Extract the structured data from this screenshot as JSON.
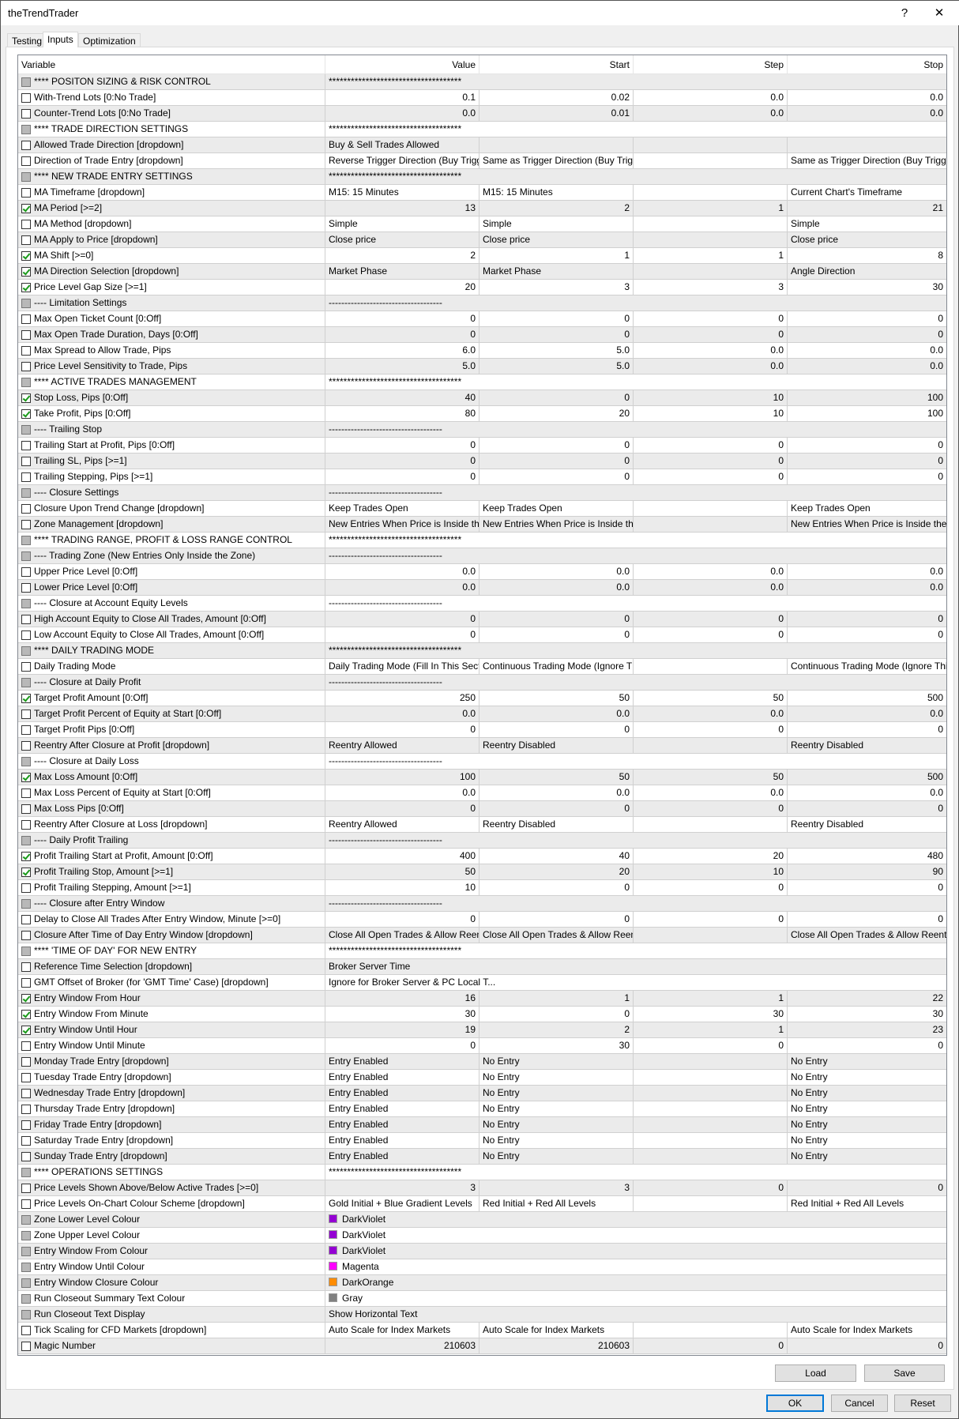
{
  "window": {
    "title": "theTrendTrader",
    "help_label": "?",
    "close_label": "✕"
  },
  "tabs": [
    {
      "label": "Testing"
    },
    {
      "label": "Inputs",
      "active": true
    },
    {
      "label": "Optimization"
    }
  ],
  "columns": [
    "Variable",
    "Value",
    "Start",
    "Step",
    "Stop"
  ],
  "rows": [
    {
      "kind": "section",
      "check": "disabled",
      "name": "**** POSITON SIZING & RISK CONTROL",
      "value": "************************************"
    },
    {
      "check": "unchecked",
      "name": "With-Trend Lots [0:No Trade]",
      "value": "0.1",
      "start": "0.02",
      "step": "0.0",
      "stop": "0.0"
    },
    {
      "check": "unchecked",
      "name": "Counter-Trend Lots [0:No Trade]",
      "value": "0.0",
      "start": "0.01",
      "step": "0.0",
      "stop": "0.0"
    },
    {
      "kind": "section",
      "check": "disabled",
      "name": "**** TRADE DIRECTION SETTINGS",
      "value": "************************************"
    },
    {
      "check": "unchecked",
      "name": "Allowed Trade Direction [dropdown]",
      "value": "Buy & Sell Trades Allowed",
      "start": "",
      "step": "",
      "stop": ""
    },
    {
      "check": "unchecked",
      "name": "Direction of Trade Entry [dropdown]",
      "value": "Reverse Trigger Direction (Buy Trigge...",
      "start": "Same as Trigger Direction (Buy Trigg...",
      "step": "",
      "stop": "Same as Trigger Direction (Buy Trigger..."
    },
    {
      "kind": "section",
      "check": "disabled",
      "name": "**** NEW TRADE ENTRY SETTINGS",
      "value": "************************************"
    },
    {
      "check": "unchecked",
      "name": "MA Timeframe [dropdown]",
      "value": "M15: 15 Minutes",
      "start": "M15: 15 Minutes",
      "step": "",
      "stop": "Current Chart's Timeframe"
    },
    {
      "check": "checked",
      "name": "MA Period [>=2]",
      "value": "13",
      "start": "2",
      "step": "1",
      "stop": "21"
    },
    {
      "check": "unchecked",
      "name": "MA Method [dropdown]",
      "value": "Simple",
      "start": "Simple",
      "step": "",
      "stop": "Simple"
    },
    {
      "check": "unchecked",
      "name": "MA Apply to Price [dropdown]",
      "value": "Close price",
      "start": "Close price",
      "step": "",
      "stop": "Close price"
    },
    {
      "check": "checked",
      "name": "MA Shift [>=0]",
      "value": "2",
      "start": "1",
      "step": "1",
      "stop": "8"
    },
    {
      "check": "checked",
      "name": "MA Direction Selection [dropdown]",
      "value": "Market Phase",
      "start": "Market Phase",
      "step": "",
      "stop": "Angle Direction"
    },
    {
      "check": "checked",
      "name": "Price Level Gap Size [>=1]",
      "value": "20",
      "start": "3",
      "step": "3",
      "stop": "30"
    },
    {
      "kind": "section",
      "check": "disabled",
      "name": "---- Limitation Settings",
      "value": "------------------------------------"
    },
    {
      "check": "unchecked",
      "name": "Max Open Ticket Count [0:Off]",
      "value": "0",
      "start": "0",
      "step": "0",
      "stop": "0"
    },
    {
      "check": "unchecked",
      "name": "Max Open Trade Duration, Days [0:Off]",
      "value": "0",
      "start": "0",
      "step": "0",
      "stop": "0"
    },
    {
      "check": "unchecked",
      "name": "Max Spread to Allow Trade, Pips",
      "value": "6.0",
      "start": "5.0",
      "step": "0.0",
      "stop": "0.0"
    },
    {
      "check": "unchecked",
      "name": "Price Level Sensitivity to Trade, Pips",
      "value": "5.0",
      "start": "5.0",
      "step": "0.0",
      "stop": "0.0"
    },
    {
      "kind": "section",
      "check": "disabled",
      "name": "**** ACTIVE TRADES MANAGEMENT",
      "value": "************************************"
    },
    {
      "check": "checked",
      "name": "Stop Loss, Pips [0:Off]",
      "value": "40",
      "start": "0",
      "step": "10",
      "stop": "100"
    },
    {
      "check": "checked",
      "name": "Take Profit, Pips [0:Off]",
      "value": "80",
      "start": "20",
      "step": "10",
      "stop": "100"
    },
    {
      "kind": "section",
      "check": "disabled",
      "name": "---- Trailing Stop",
      "value": "------------------------------------"
    },
    {
      "check": "unchecked",
      "name": "Trailing Start at Profit, Pips [0:Off]",
      "value": "0",
      "start": "0",
      "step": "0",
      "stop": "0"
    },
    {
      "check": "unchecked",
      "name": "Trailing SL, Pips [>=1]",
      "value": "0",
      "start": "0",
      "step": "0",
      "stop": "0"
    },
    {
      "check": "unchecked",
      "name": "Trailing Stepping, Pips [>=1]",
      "value": "0",
      "start": "0",
      "step": "0",
      "stop": "0"
    },
    {
      "kind": "section",
      "check": "disabled",
      "name": "---- Closure Settings",
      "value": "------------------------------------"
    },
    {
      "check": "unchecked",
      "name": "Closure Upon Trend Change [dropdown]",
      "value": "Keep Trades Open",
      "start": "Keep Trades Open",
      "step": "",
      "stop": "Keep Trades Open"
    },
    {
      "check": "unchecked",
      "name": "Zone Management [dropdown]",
      "value": "New Entries When Price is Inside the ...",
      "start": "New Entries When Price is Inside the ...",
      "step": "",
      "stop": "New Entries When Price is Inside the ..."
    },
    {
      "kind": "section",
      "check": "disabled",
      "name": "**** TRADING RANGE, PROFIT & LOSS RANGE CONTROL",
      "value": "************************************"
    },
    {
      "kind": "section",
      "check": "disabled",
      "name": "---- Trading Zone (New Entries Only Inside the Zone)",
      "value": "------------------------------------"
    },
    {
      "check": "unchecked",
      "name": "Upper Price Level [0:Off]",
      "value": "0.0",
      "start": "0.0",
      "step": "0.0",
      "stop": "0.0"
    },
    {
      "check": "unchecked",
      "name": "Lower Price Level [0:Off]",
      "value": "0.0",
      "start": "0.0",
      "step": "0.0",
      "stop": "0.0"
    },
    {
      "kind": "section",
      "check": "disabled",
      "name": "---- Closure at Account Equity Levels",
      "value": "------------------------------------"
    },
    {
      "check": "unchecked",
      "name": "High Account Equity to Close All Trades, Amount [0:Off]",
      "value": "0",
      "start": "0",
      "step": "0",
      "stop": "0"
    },
    {
      "check": "unchecked",
      "name": "Low Account Equity to Close All Trades, Amount [0:Off]",
      "value": "0",
      "start": "0",
      "step": "0",
      "stop": "0"
    },
    {
      "kind": "section",
      "check": "disabled",
      "name": "**** DAILY TRADING MODE",
      "value": "************************************"
    },
    {
      "check": "unchecked",
      "name": "Daily Trading Mode",
      "value": "Daily Trading Mode (Fill In This Sectio...",
      "start": "Continuous Trading Mode (Ignore Thi...",
      "step": "",
      "stop": "Continuous Trading Mode (Ignore This..."
    },
    {
      "kind": "section",
      "check": "disabled",
      "name": "---- Closure at Daily Profit",
      "value": "------------------------------------"
    },
    {
      "check": "checked",
      "name": "Target Profit Amount [0:Off]",
      "value": "250",
      "start": "50",
      "step": "50",
      "stop": "500"
    },
    {
      "check": "unchecked",
      "name": "Target Profit Percent of Equity at Start [0:Off]",
      "value": "0.0",
      "start": "0.0",
      "step": "0.0",
      "stop": "0.0"
    },
    {
      "check": "unchecked",
      "name": "Target Profit Pips [0:Off]",
      "value": "0",
      "start": "0",
      "step": "0",
      "stop": "0"
    },
    {
      "check": "unchecked",
      "name": "Reentry After Closure at Profit [dropdown]",
      "value": "Reentry Allowed",
      "start": "Reentry Disabled",
      "step": "",
      "stop": "Reentry Disabled"
    },
    {
      "kind": "section",
      "check": "disabled",
      "name": "---- Closure at Daily Loss",
      "value": "------------------------------------"
    },
    {
      "check": "checked",
      "name": "Max Loss Amount [0:Off]",
      "value": "100",
      "start": "50",
      "step": "50",
      "stop": "500"
    },
    {
      "check": "unchecked",
      "name": "Max Loss Percent of Equity at Start [0:Off]",
      "value": "0.0",
      "start": "0.0",
      "step": "0.0",
      "stop": "0.0"
    },
    {
      "check": "unchecked",
      "name": "Max Loss Pips [0:Off]",
      "value": "0",
      "start": "0",
      "step": "0",
      "stop": "0"
    },
    {
      "check": "unchecked",
      "name": "Reentry After Closure at Loss [dropdown]",
      "value": "Reentry Allowed",
      "start": "Reentry Disabled",
      "step": "",
      "stop": "Reentry Disabled"
    },
    {
      "kind": "section",
      "check": "disabled",
      "name": "---- Daily Profit Trailing",
      "value": "------------------------------------"
    },
    {
      "check": "checked",
      "name": "Profit Trailing Start at Profit, Amount [0:Off]",
      "value": "400",
      "start": "40",
      "step": "20",
      "stop": "480"
    },
    {
      "check": "checked",
      "name": "Profit Trailing Stop, Amount [>=1]",
      "value": "50",
      "start": "20",
      "step": "10",
      "stop": "90"
    },
    {
      "check": "unchecked",
      "name": "Profit Trailing Stepping, Amount [>=1]",
      "value": "10",
      "start": "0",
      "step": "0",
      "stop": "0"
    },
    {
      "kind": "section",
      "check": "disabled",
      "name": "---- Closure after Entry Window",
      "value": "------------------------------------"
    },
    {
      "check": "unchecked",
      "name": "Delay to Close All Trades After Entry Window, Minute [>=0]",
      "value": "0",
      "start": "0",
      "step": "0",
      "stop": "0"
    },
    {
      "check": "unchecked",
      "name": "Closure After Time of Day Entry Window [dropdown]",
      "value": "Close All Open Trades & Allow Reentry",
      "start": "Close All Open Trades & Allow Reentry",
      "step": "",
      "stop": "Close All Open Trades & Allow Reentry"
    },
    {
      "kind": "section",
      "check": "disabled",
      "name": "**** 'TIME OF DAY' FOR NEW ENTRY",
      "value": "************************************"
    },
    {
      "kind": "span",
      "check": "unchecked",
      "name": "Reference Time Selection [dropdown]",
      "value": "Broker Server Time"
    },
    {
      "kind": "span",
      "check": "unchecked",
      "name": "GMT Offset of Broker (for 'GMT Time' Case) [dropdown]",
      "value": "Ignore for Broker Server & PC Local T..."
    },
    {
      "check": "checked",
      "name": "Entry Window From Hour",
      "value": "16",
      "start": "1",
      "step": "1",
      "stop": "22"
    },
    {
      "check": "checked",
      "name": "Entry Window From Minute",
      "value": "30",
      "start": "0",
      "step": "30",
      "stop": "30"
    },
    {
      "check": "checked",
      "name": "Entry Window Until Hour",
      "value": "19",
      "start": "2",
      "step": "1",
      "stop": "23"
    },
    {
      "check": "unchecked",
      "name": "Entry Window Until Minute",
      "value": "0",
      "start": "30",
      "step": "0",
      "stop": "0"
    },
    {
      "check": "unchecked",
      "name": "Monday Trade Entry [dropdown]",
      "value": "Entry Enabled",
      "start": "No Entry",
      "step": "",
      "stop": "No Entry"
    },
    {
      "check": "unchecked",
      "name": "Tuesday Trade Entry [dropdown]",
      "value": "Entry Enabled",
      "start": "No Entry",
      "step": "",
      "stop": "No Entry"
    },
    {
      "check": "unchecked",
      "name": "Wednesday Trade Entry [dropdown]",
      "value": "Entry Enabled",
      "start": "No Entry",
      "step": "",
      "stop": "No Entry"
    },
    {
      "check": "unchecked",
      "name": "Thursday Trade Entry [dropdown]",
      "value": "Entry Enabled",
      "start": "No Entry",
      "step": "",
      "stop": "No Entry"
    },
    {
      "check": "unchecked",
      "name": "Friday Trade Entry [dropdown]",
      "value": "Entry Enabled",
      "start": "No Entry",
      "step": "",
      "stop": "No Entry"
    },
    {
      "check": "unchecked",
      "name": "Saturday Trade Entry [dropdown]",
      "value": "Entry Enabled",
      "start": "No Entry",
      "step": "",
      "stop": "No Entry"
    },
    {
      "check": "unchecked",
      "name": "Sunday Trade Entry [dropdown]",
      "value": "Entry Enabled",
      "start": "No Entry",
      "step": "",
      "stop": "No Entry"
    },
    {
      "kind": "section",
      "check": "disabled",
      "name": "**** OPERATIONS SETTINGS",
      "value": "************************************"
    },
    {
      "check": "unchecked",
      "name": "Price Levels Shown Above/Below Active Trades [>=0]",
      "value": "3",
      "start": "3",
      "step": "0",
      "stop": "0"
    },
    {
      "check": "unchecked",
      "name": "Price Levels On-Chart Colour Scheme [dropdown]",
      "value": "Gold Initial + Blue Gradient Levels",
      "start": "Red Initial + Red All Levels",
      "step": "",
      "stop": "Red Initial + Red All Levels"
    },
    {
      "kind": "span",
      "check": "disabled",
      "name": "Zone Lower Level Colour",
      "value": "DarkViolet",
      "swatch": "#9400d3"
    },
    {
      "kind": "span",
      "check": "disabled",
      "name": "Zone Upper Level Colour",
      "value": "DarkViolet",
      "swatch": "#9400d3"
    },
    {
      "kind": "span",
      "check": "disabled",
      "name": "Entry Window From Colour",
      "value": "DarkViolet",
      "swatch": "#9400d3"
    },
    {
      "kind": "span",
      "check": "disabled",
      "name": "Entry Window Until Colour",
      "value": "Magenta",
      "swatch": "#ff00ff"
    },
    {
      "kind": "span",
      "check": "disabled",
      "name": "Entry Window Closure Colour",
      "value": "DarkOrange",
      "swatch": "#ff8c00"
    },
    {
      "kind": "span",
      "check": "disabled",
      "name": "Run Closeout Summary Text Colour",
      "value": "Gray",
      "swatch": "#808080"
    },
    {
      "kind": "span",
      "check": "disabled",
      "name": "Run Closeout Text Display",
      "value": "Show Horizontal Text"
    },
    {
      "check": "unchecked",
      "name": "Tick Scaling for CFD Markets [dropdown]",
      "value": "Auto Scale for Index Markets",
      "start": "Auto Scale for Index Markets",
      "step": "",
      "stop": "Auto Scale for Index Markets"
    },
    {
      "check": "unchecked",
      "name": "Magic Number",
      "value": "210603",
      "start": "210603",
      "step": "0",
      "stop": "0"
    }
  ],
  "buttons": {
    "load": "Load",
    "save": "Save",
    "ok": "OK",
    "cancel": "Cancel",
    "reset": "Reset"
  }
}
